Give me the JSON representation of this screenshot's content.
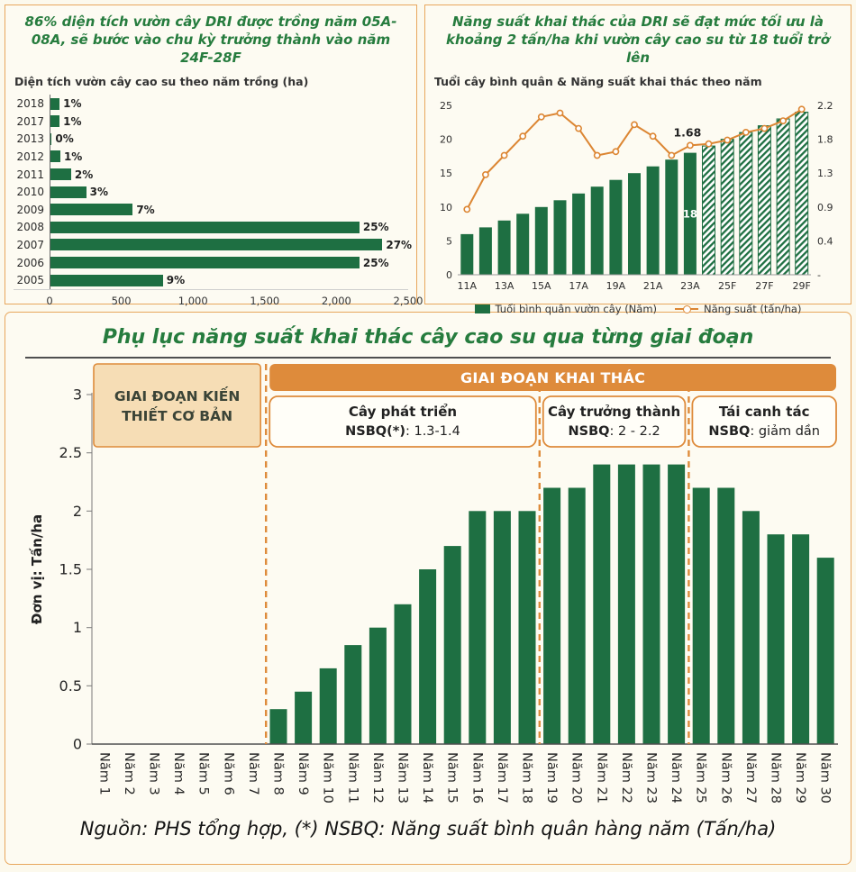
{
  "colors": {
    "bg": "#FCF9ED",
    "panel_border": "#E8A75D",
    "green": "#1E6F42",
    "green_heading": "#267C3E",
    "orange": "#DC8633",
    "orange_fill": "#DE8B3B",
    "tan_fill": "#F6DDB5",
    "text_dark": "#2E2E2E"
  },
  "panels": {
    "top_left": {
      "heading": "86% diện tích vườn cây DRI được trồng năm 05A-08A, sẽ bước vào chu kỳ trưởng thành vào năm 24F-28F",
      "chart_title": "Diện tích vườn cây cao su theo năm trồng (ha)"
    },
    "top_right": {
      "heading": "Năng suất khai thác của DRI sẽ đạt mức tối ưu là khoảng 2 tấn/ha khi vườn cây cao su từ 18 tuổi trở lên",
      "chart_title": "Tuổi cây bình quân & Năng suất khai thác theo năm",
      "legend_bar": "Tuổi bình quân vườn cây (Năm)",
      "legend_line": "Năng suất (tấn/ha)"
    },
    "bottom": {
      "title": "Phụ lục năng suất khai thác cây cao su qua từng giai đoạn",
      "footer": "Nguồn: PHS tổng hợp, (*) NSBQ: Năng suất bình quân hàng năm (Tấn/ha)"
    }
  },
  "chart_data": [
    {
      "type": "bar",
      "orientation": "horizontal",
      "title": "Diện tích vườn cây cao su theo năm trồng (ha)",
      "categories": [
        "2018",
        "2017",
        "2013",
        "2012",
        "2011",
        "2010",
        "2009",
        "2008",
        "2007",
        "2006",
        "2005"
      ],
      "values": [
        70,
        70,
        15,
        75,
        150,
        255,
        580,
        2160,
        2320,
        2160,
        790
      ],
      "value_labels": [
        "1%",
        "1%",
        "0%",
        "1%",
        "2%",
        "3%",
        "7%",
        "25%",
        "27%",
        "25%",
        "9%"
      ],
      "xlim": [
        0,
        2500
      ],
      "xticks": [
        "0",
        "500",
        "1,000",
        "1,500",
        "2,000",
        "2,500"
      ]
    },
    {
      "type": "combo",
      "title": "Tuổi cây bình quân & Năng suất khai thác theo năm",
      "categories": [
        "11A",
        "12A",
        "13A",
        "14A",
        "15A",
        "16A",
        "17A",
        "18A",
        "19A",
        "20A",
        "21A",
        "22A",
        "23A",
        "24F",
        "25F",
        "26F",
        "27F",
        "28F",
        "29F"
      ],
      "xtick_step": 2,
      "left_axis": {
        "ticks": [
          0,
          5,
          10,
          15,
          20,
          25
        ],
        "max": 25
      },
      "right_axis": {
        "tick_labels": [
          "-",
          "0.4",
          "0.9",
          "1.3",
          "1.8",
          "2.2"
        ],
        "max": 2.2
      },
      "series": [
        {
          "name": "Tuổi bình quân vườn cây (Năm)",
          "type": "bar",
          "axis": "left",
          "values": [
            6,
            7,
            8,
            9,
            10,
            11,
            12,
            13,
            14,
            15,
            16,
            17,
            18,
            19,
            20,
            21,
            22,
            23,
            24
          ],
          "hatch_from_index": 13
        },
        {
          "name": "Năng suất (tấn/ha)",
          "type": "line",
          "axis": "right",
          "values": [
            0.85,
            1.3,
            1.55,
            1.8,
            2.05,
            2.1,
            1.9,
            1.55,
            1.6,
            1.95,
            1.8,
            1.55,
            1.68,
            1.7,
            1.75,
            1.85,
            1.9,
            2.0,
            2.15
          ]
        }
      ],
      "annotations": {
        "index": 12,
        "line_label": "1.68",
        "bar_label": "18"
      }
    },
    {
      "type": "bar",
      "title": "Phụ lục năng suất khai thác cây cao su qua từng giai đoạn",
      "ylabel": "Đơn vị: Tấn/ha",
      "categories": [
        "Năm 1",
        "Năm 2",
        "Năm 3",
        "Năm 4",
        "Năm 5",
        "Năm 6",
        "Năm 7",
        "Năm 8",
        "Năm 9",
        "Năm 10",
        "Năm 11",
        "Năm 12",
        "Năm 13",
        "Năm 14",
        "Năm 15",
        "Năm 16",
        "Năm 17",
        "Năm 18",
        "Năm 19",
        "Năm 20",
        "Năm 21",
        "Năm 22",
        "Năm 23",
        "Năm 24",
        "Năm 25",
        "Năm 26",
        "Năm 27",
        "Năm 28",
        "Năm 29",
        "Năm 30"
      ],
      "values": [
        0,
        0,
        0,
        0,
        0,
        0,
        0,
        0.3,
        0.45,
        0.65,
        0.85,
        1,
        1.2,
        1.5,
        1.7,
        2,
        2,
        2,
        2.2,
        2.2,
        2.4,
        2.4,
        2.4,
        2.4,
        2.2,
        2.2,
        2,
        1.8,
        1.8,
        1.6
      ],
      "ylim": [
        0,
        3
      ],
      "yticks": [
        0,
        0.5,
        1,
        1.5,
        2,
        2.5,
        3
      ],
      "stage_boundaries": [
        7,
        18,
        24
      ],
      "stages": {
        "basic_line1": "GIAI ĐOẠN KIẾN",
        "basic_line2": "THIẾT CƠ BẢN",
        "exploit_header": "GIAI ĐOẠN KHAI THÁC",
        "boxes": [
          {
            "title": "Cây phát triển",
            "sub_bold": "NSBQ(*)",
            "sub_rest": ": 1.3-1.4"
          },
          {
            "title": "Cây trưởng thành",
            "sub_bold": "NSBQ",
            "sub_rest": ": 2 - 2.2"
          },
          {
            "title": "Tái canh tác",
            "sub_bold": "NSBQ",
            "sub_rest": ": giảm dần"
          }
        ]
      }
    }
  ]
}
